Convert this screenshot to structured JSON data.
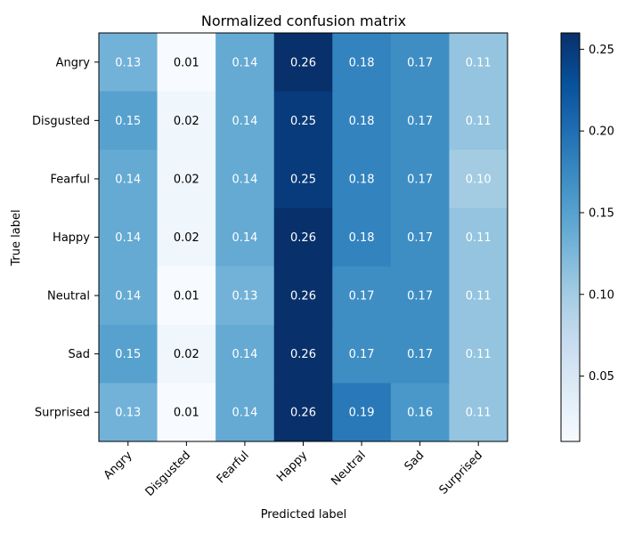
{
  "chart_data": {
    "type": "heatmap",
    "title": "Normalized confusion matrix",
    "xlabel": "Predicted label",
    "ylabel": "True label",
    "rows": [
      "Angry",
      "Disgusted",
      "Fearful",
      "Happy",
      "Neutral",
      "Sad",
      "Surprised"
    ],
    "cols": [
      "Angry",
      "Disgusted",
      "Fearful",
      "Happy",
      "Neutral",
      "Sad",
      "Surprised"
    ],
    "values": [
      [
        0.13,
        0.01,
        0.14,
        0.26,
        0.18,
        0.17,
        0.11
      ],
      [
        0.15,
        0.02,
        0.14,
        0.25,
        0.18,
        0.17,
        0.11
      ],
      [
        0.14,
        0.02,
        0.14,
        0.25,
        0.18,
        0.17,
        0.1
      ],
      [
        0.14,
        0.02,
        0.14,
        0.26,
        0.18,
        0.17,
        0.11
      ],
      [
        0.14,
        0.01,
        0.13,
        0.26,
        0.17,
        0.17,
        0.11
      ],
      [
        0.15,
        0.02,
        0.14,
        0.26,
        0.17,
        0.17,
        0.11
      ],
      [
        0.13,
        0.01,
        0.14,
        0.26,
        0.19,
        0.16,
        0.11
      ]
    ],
    "labels": [
      [
        "0.13",
        "0.01",
        "0.14",
        "0.26",
        "0.18",
        "0.17",
        "0.11"
      ],
      [
        "0.15",
        "0.02",
        "0.14",
        "0.25",
        "0.18",
        "0.17",
        "0.11"
      ],
      [
        "0.14",
        "0.02",
        "0.14",
        "0.25",
        "0.18",
        "0.17",
        "0.10"
      ],
      [
        "0.14",
        "0.02",
        "0.14",
        "0.26",
        "0.18",
        "0.17",
        "0.11"
      ],
      [
        "0.14",
        "0.01",
        "0.13",
        "0.26",
        "0.17",
        "0.17",
        "0.11"
      ],
      [
        "0.15",
        "0.02",
        "0.14",
        "0.26",
        "0.17",
        "0.17",
        "0.11"
      ],
      [
        "0.13",
        "0.01",
        "0.14",
        "0.26",
        "0.19",
        "0.16",
        "0.11"
      ]
    ],
    "colorbar": {
      "min": 0.01,
      "max": 0.26,
      "ticks": [
        0.05,
        0.1,
        0.15,
        0.2,
        0.25
      ],
      "tick_labels": [
        "0.05",
        "0.10",
        "0.15",
        "0.20",
        "0.25"
      ]
    },
    "colormap": "Blues",
    "grid": false
  }
}
